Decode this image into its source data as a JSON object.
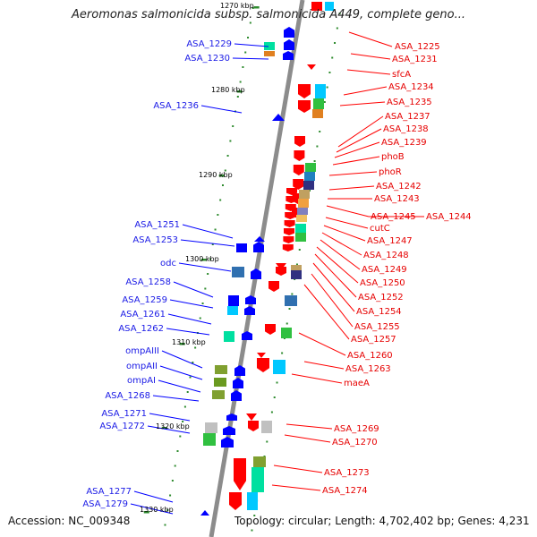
{
  "title": "Aeromonas salmonicida subsp. salmonicida A449, complete geno...",
  "footer": {
    "accession": "Accession: NC_009348",
    "stats": "Topology: circular; Length: 4,702,402 bp; Genes: 4,231"
  },
  "colors": {
    "backbone": "#8c8c8c",
    "forward": "#0000ff",
    "reverse": "#ff0000",
    "dot": "#2e8b2e"
  },
  "ticks": [
    "1270 kbp",
    "1280 kbp",
    "1290 kbp",
    "1300 kbp",
    "1310 kbp",
    "1320 kbp",
    "1330 kbp"
  ],
  "left_labels": [
    "ASA_1229",
    "ASA_1230",
    "ASA_1236",
    "ASA_1251",
    "ASA_1253",
    "odc",
    "ASA_1258",
    "ASA_1259",
    "ASA_1261",
    "ASA_1262",
    "ompAIII",
    "ompAII",
    "ompAI",
    "ASA_1268",
    "ASA_1271",
    "ASA_1272",
    "ASA_1277",
    "ASA_1279"
  ],
  "right_labels": [
    "ASA_1225",
    "ASA_1231",
    "sfcA",
    "ASA_1234",
    "ASA_1235",
    "ASA_1237",
    "ASA_1238",
    "ASA_1239",
    "phoB",
    "phoR",
    "ASA_1242",
    "ASA_1243",
    "ASA_1245",
    "ASA_1244",
    "cutC",
    "ASA_1247",
    "ASA_1248",
    "ASA_1249",
    "ASA_1250",
    "ASA_1252",
    "ASA_1254",
    "ASA_1255",
    "ASA_1257",
    "ASA_1260",
    "ASA_1263",
    "maeA",
    "ASA_1269",
    "ASA_1270",
    "ASA_1273",
    "ASA_1274"
  ]
}
